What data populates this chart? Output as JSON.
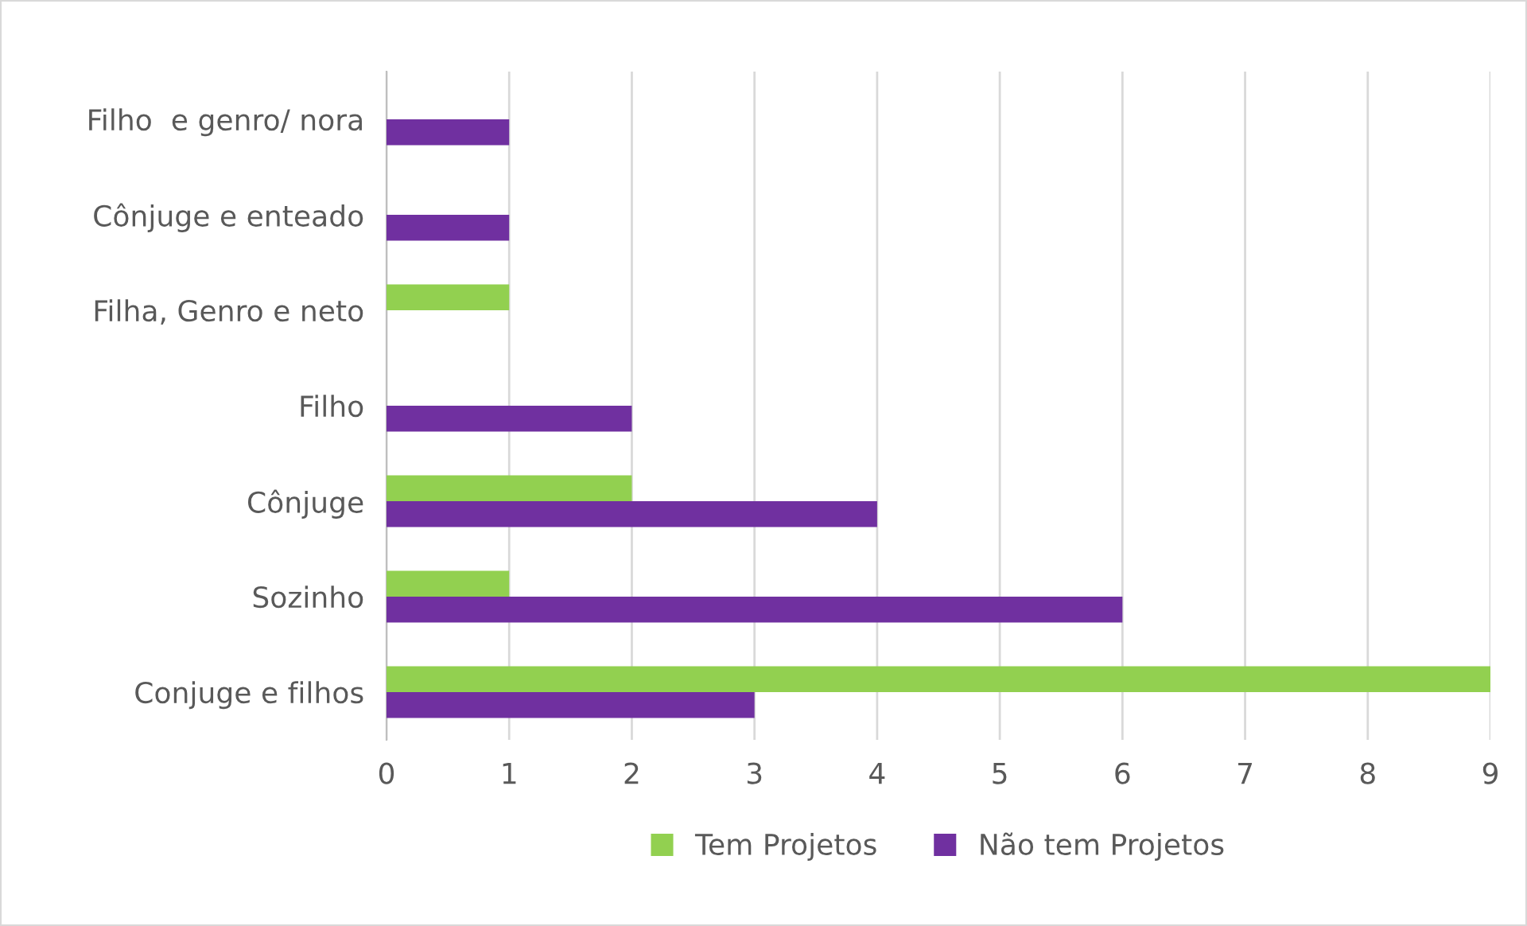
{
  "chart_data": {
    "type": "bar",
    "orientation": "horizontal",
    "categories": [
      "Filho  e genro/ nora",
      "Cônjuge e enteado",
      "Filha, Genro e neto",
      "Filho",
      "Cônjuge",
      "Sozinho",
      "Conjuge e filhos"
    ],
    "series": [
      {
        "name": "Tem Projetos",
        "color": "#92d050",
        "values": [
          null,
          null,
          1,
          null,
          2,
          1,
          9
        ]
      },
      {
        "name": "Não tem Projetos",
        "color": "#7030a0",
        "values": [
          1,
          1,
          null,
          2,
          4,
          6,
          3
        ]
      }
    ],
    "xlim": [
      0,
      9
    ],
    "xticks": [
      0,
      1,
      2,
      3,
      4,
      5,
      6,
      7,
      8,
      9
    ],
    "grid": "x",
    "legend": "bottom"
  }
}
